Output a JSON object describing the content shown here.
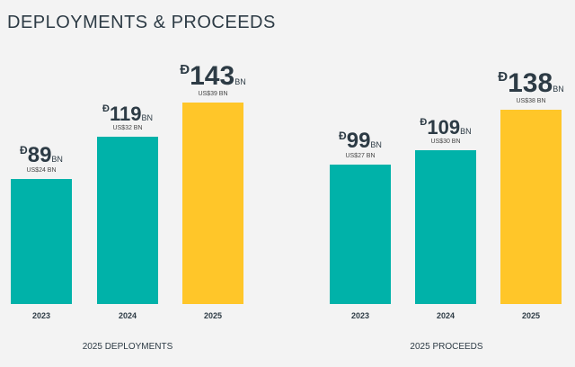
{
  "title": "DEPLOYMENTS & PROCEEDS",
  "chart_data": [
    {
      "type": "bar",
      "title": "2025 DEPLOYMENTS",
      "categories": [
        "2023",
        "2024",
        "2025"
      ],
      "values": [
        89,
        119,
        143
      ],
      "usd_labels": [
        "US$24 BN",
        "US$32 BN",
        "US$39 BN"
      ],
      "currency_symbol": "Đ",
      "unit": "BN",
      "colors": [
        "#00b2a9",
        "#00b2a9",
        "#ffc629"
      ]
    },
    {
      "type": "bar",
      "title": "2025 PROCEEDS",
      "categories": [
        "2023",
        "2024",
        "2025"
      ],
      "values": [
        99,
        109,
        138
      ],
      "usd_labels": [
        "US$27 BN",
        "US$30 BN",
        "US$38 BN"
      ],
      "currency_symbol": "Đ",
      "unit": "BN",
      "colors": [
        "#00b2a9",
        "#00b2a9",
        "#ffc629"
      ]
    }
  ]
}
